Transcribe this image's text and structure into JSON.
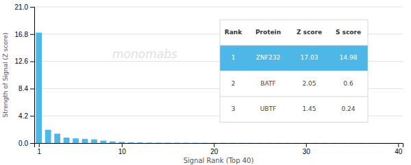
{
  "chart_data": {
    "type": "bar",
    "xlabel": "Signal Rank (Top 40)",
    "ylabel": "Strength of Signal (Z score)",
    "x": [
      1,
      2,
      3,
      4,
      5,
      6,
      7,
      8,
      9,
      10,
      11,
      12,
      13,
      14,
      15,
      16,
      17,
      18,
      19,
      20,
      21,
      22,
      23,
      24,
      25,
      26,
      27,
      28,
      29,
      30,
      31,
      32,
      33,
      34,
      35,
      36,
      37,
      38,
      39,
      40
    ],
    "values": [
      17.03,
      2.05,
      1.45,
      0.85,
      0.72,
      0.65,
      0.58,
      0.38,
      0.25,
      0.18,
      0.13,
      0.1,
      0.08,
      0.07,
      0.06,
      0.055,
      0.05,
      0.045,
      0.04,
      0.036,
      0.032,
      0.029,
      0.026,
      0.024,
      0.022,
      0.02,
      0.018,
      0.017,
      0.016,
      0.015,
      0.014,
      0.013,
      0.012,
      0.011,
      0.01,
      0.01,
      0.009,
      0.009,
      0.008,
      0.008
    ],
    "color": "#4db8e8",
    "xlim": [
      0.5,
      40.5
    ],
    "xticks": [
      1,
      10,
      20,
      30,
      40
    ],
    "ylim": [
      0,
      21.0
    ],
    "yticks": [
      {
        "value": 0,
        "label": "0.0"
      },
      4.2,
      8.4,
      12.6,
      16.8,
      {
        "value": 21.0,
        "label": "21.0"
      }
    ],
    "grid": true,
    "annotations": [
      "monomabs"
    ],
    "table": {
      "headers": [
        "Rank",
        "Protein",
        "Z score",
        "S score"
      ],
      "rows": [
        [
          "1",
          "ZNF232",
          "17.03",
          "14.98"
        ],
        [
          "2",
          "BATF",
          "2.05",
          "0.6"
        ],
        [
          "3",
          "UBTF",
          "1.45",
          "0.24"
        ]
      ],
      "highlight_row": 0,
      "color": "#4db8e8"
    }
  }
}
